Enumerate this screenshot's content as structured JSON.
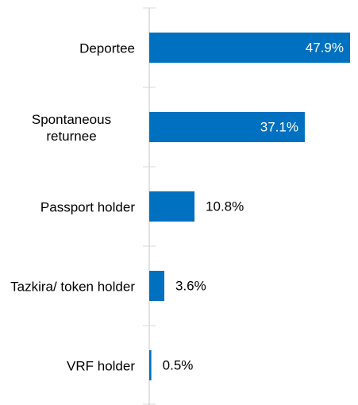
{
  "chart_data": {
    "type": "barh",
    "categories": [
      "Deportee",
      "Spontaneous returnee",
      "Passport holder",
      "Tazkira/ token holder",
      "VRF holder"
    ],
    "values": [
      47.9,
      37.1,
      10.8,
      3.6,
      0.5
    ],
    "value_labels": [
      "47.9%",
      "37.1%",
      "10.8%",
      "3.6%",
      "0.5%"
    ],
    "color": "#0070c0"
  }
}
